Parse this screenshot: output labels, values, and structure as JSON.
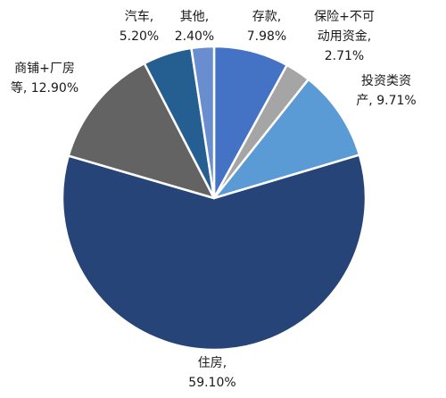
{
  "chart_data": {
    "type": "pie",
    "title": "",
    "slices": [
      {
        "label_lines": [
          "存款,",
          "7.98%"
        ],
        "value": 7.98,
        "color": "#4472C4"
      },
      {
        "label_lines": [
          "保险+不可",
          "动用资金,",
          "2.71%"
        ],
        "value": 2.71,
        "color": "#A5A5A5"
      },
      {
        "label_lines": [
          "投资类资",
          "产, 9.71%"
        ],
        "value": 9.71,
        "color": "#5B9BD5"
      },
      {
        "label_lines": [
          "住房,",
          "59.10%"
        ],
        "value": 59.1,
        "color": "#264478"
      },
      {
        "label_lines": [
          "商铺+厂房",
          "等, 12.90%"
        ],
        "value": 12.9,
        "color": "#636363"
      },
      {
        "label_lines": [
          "汽车,",
          "5.20%"
        ],
        "value": 5.2,
        "color": "#255E91"
      },
      {
        "label_lines": [
          "其他,",
          "2.40%"
        ],
        "value": 2.4,
        "color": "#698ED0"
      }
    ]
  }
}
